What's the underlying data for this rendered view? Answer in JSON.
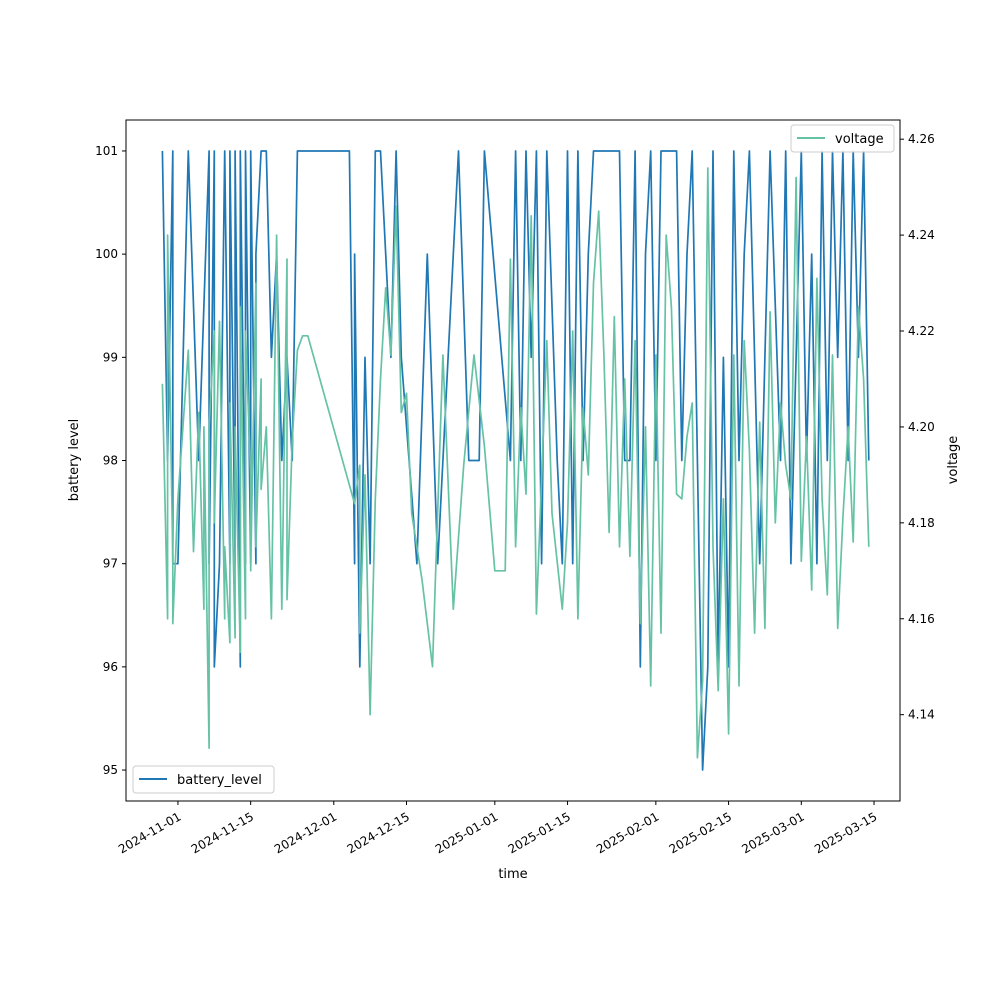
{
  "chart_data": {
    "type": "line",
    "title": "",
    "xlabel": "time",
    "ylabel_left": "battery level",
    "ylabel_right": "voltage",
    "x_ticks": [
      "2024-11-01",
      "2024-11-15",
      "2024-12-01",
      "2024-12-15",
      "2025-01-01",
      "2025-01-15",
      "2025-02-01",
      "2025-02-15",
      "2025-03-01",
      "2025-03-15"
    ],
    "y_left_ticks": [
      95,
      96,
      97,
      98,
      99,
      100,
      101
    ],
    "y_right_ticks": [
      4.14,
      4.16,
      4.18,
      4.2,
      4.22,
      4.24,
      4.26
    ],
    "xlim": [
      "2024-10-22",
      "2025-03-20"
    ],
    "ylim_left": [
      94.7,
      101.3
    ],
    "ylim_right": [
      4.122,
      4.264
    ],
    "grid": false,
    "legend_left": {
      "position": "bottom-left",
      "label": "battery_level"
    },
    "legend_right": {
      "position": "top-right",
      "label": "voltage"
    },
    "colors": {
      "battery_level": "#1f77b4",
      "voltage": "#66c2a5"
    },
    "series": [
      {
        "name": "battery_level",
        "axis": "left",
        "x": [
          "2024-10-29",
          "2024-10-30",
          "2024-10-31",
          "2024-10-31",
          "2024-11-01",
          "2024-11-03",
          "2024-11-05",
          "2024-11-07",
          "2024-11-07",
          "2024-11-08",
          "2024-11-08",
          "2024-11-09",
          "2024-11-10",
          "2024-11-11",
          "2024-11-11",
          "2024-11-12",
          "2024-11-12",
          "2024-11-13",
          "2024-11-13",
          "2024-11-14",
          "2024-11-14",
          "2024-11-15",
          "2024-11-15",
          "2024-11-16",
          "2024-11-16",
          "2024-11-17",
          "2024-11-18",
          "2024-11-19",
          "2024-11-20",
          "2024-11-21",
          "2024-11-22",
          "2024-11-23",
          "2024-11-24",
          "2024-11-25",
          "2024-11-27",
          "2024-12-04",
          "2024-12-05",
          "2024-12-05",
          "2024-12-06",
          "2024-12-07",
          "2024-12-08",
          "2024-12-09",
          "2024-12-10",
          "2024-12-11",
          "2024-12-12",
          "2024-12-13",
          "2024-12-14",
          "2024-12-17",
          "2024-12-19",
          "2024-12-21",
          "2024-12-23",
          "2024-12-25",
          "2024-12-27",
          "2024-12-29",
          "2024-12-30",
          "2025-01-04",
          "2025-01-05",
          "2025-01-06",
          "2025-01-07",
          "2025-01-08",
          "2025-01-09",
          "2025-01-10",
          "2025-01-11",
          "2025-01-13",
          "2025-01-14",
          "2025-01-15",
          "2025-01-16",
          "2025-01-17",
          "2025-01-18",
          "2025-01-19",
          "2025-01-20",
          "2025-01-22",
          "2025-01-25",
          "2025-01-26",
          "2025-01-27",
          "2025-01-28",
          "2025-01-29",
          "2025-01-30",
          "2025-01-31",
          "2025-02-01",
          "2025-02-02",
          "2025-02-03",
          "2025-02-05",
          "2025-02-06",
          "2025-02-07",
          "2025-02-08",
          "2025-02-10",
          "2025-02-11",
          "2025-02-12",
          "2025-02-13",
          "2025-02-14",
          "2025-02-15",
          "2025-02-16",
          "2025-02-17",
          "2025-02-18",
          "2025-02-19",
          "2025-02-20",
          "2025-02-21",
          "2025-02-23",
          "2025-02-25",
          "2025-02-26",
          "2025-02-27",
          "2025-02-28",
          "2025-03-01",
          "2025-03-02",
          "2025-03-03",
          "2025-03-04",
          "2025-03-05",
          "2025-03-06",
          "2025-03-07",
          "2025-03-08",
          "2025-03-09",
          "2025-03-10",
          "2025-03-11",
          "2025-03-12",
          "2025-03-13",
          "2025-03-14"
        ],
        "values": [
          101,
          98,
          101,
          97,
          97,
          101,
          98,
          101,
          97,
          101,
          96,
          97,
          101,
          97,
          101,
          97,
          101,
          96,
          101,
          97,
          101,
          97,
          101,
          97,
          100,
          101,
          101,
          99,
          100,
          98,
          99,
          98,
          101,
          101,
          101,
          101,
          97,
          100,
          96,
          99,
          97,
          101,
          101,
          100,
          99,
          101,
          99,
          97,
          100,
          97,
          99,
          101,
          98,
          98,
          101,
          98,
          101,
          98,
          101,
          99,
          101,
          97,
          101,
          98,
          97,
          101,
          97,
          101,
          98,
          100,
          101,
          101,
          101,
          98,
          98,
          101,
          96,
          100,
          101,
          98,
          101,
          101,
          101,
          98,
          100,
          101,
          95,
          96,
          101,
          96,
          99,
          96,
          101,
          98,
          100,
          101,
          99,
          97,
          101,
          98,
          101,
          97,
          99,
          101,
          98,
          100,
          97,
          101,
          98,
          101,
          99,
          101,
          98,
          101,
          99,
          101,
          98
        ]
      },
      {
        "name": "voltage",
        "axis": "right",
        "x": [
          "2024-10-29",
          "2024-10-30",
          "2024-10-30",
          "2024-10-31",
          "2024-10-31",
          "2024-11-01",
          "2024-11-03",
          "2024-11-04",
          "2024-11-05",
          "2024-11-06",
          "2024-11-06",
          "2024-11-07",
          "2024-11-07",
          "2024-11-08",
          "2024-11-08",
          "2024-11-09",
          "2024-11-10",
          "2024-11-10",
          "2024-11-11",
          "2024-11-11",
          "2024-11-12",
          "2024-11-12",
          "2024-11-13",
          "2024-11-13",
          "2024-11-14",
          "2024-11-14",
          "2024-11-15",
          "2024-11-15",
          "2024-11-16",
          "2024-11-16",
          "2024-11-17",
          "2024-11-17",
          "2024-11-18",
          "2024-11-19",
          "2024-11-20",
          "2024-11-21",
          "2024-11-22",
          "2024-11-22",
          "2024-11-23",
          "2024-11-24",
          "2024-11-25",
          "2024-11-26",
          "2024-12-05",
          "2024-12-06",
          "2024-12-06",
          "2024-12-07",
          "2024-12-08",
          "2024-12-09",
          "2024-12-10",
          "2024-12-11",
          "2024-12-12",
          "2024-12-13",
          "2024-12-14",
          "2024-12-15",
          "2024-12-16",
          "2024-12-18",
          "2024-12-20",
          "2024-12-22",
          "2024-12-24",
          "2024-12-26",
          "2024-12-28",
          "2024-12-30",
          "2025-01-01",
          "2025-01-03",
          "2025-01-04",
          "2025-01-05",
          "2025-01-06",
          "2025-01-07",
          "2025-01-08",
          "2025-01-09",
          "2025-01-10",
          "2025-01-11",
          "2025-01-12",
          "2025-01-14",
          "2025-01-15",
          "2025-01-16",
          "2025-01-17",
          "2025-01-18",
          "2025-01-19",
          "2025-01-20",
          "2025-01-21",
          "2025-01-22",
          "2025-01-23",
          "2025-01-24",
          "2025-01-25",
          "2025-01-26",
          "2025-01-27",
          "2025-01-28",
          "2025-01-29",
          "2025-01-30",
          "2025-01-31",
          "2025-02-01",
          "2025-02-02",
          "2025-02-03",
          "2025-02-04",
          "2025-02-05",
          "2025-02-06",
          "2025-02-07",
          "2025-02-08",
          "2025-02-09",
          "2025-02-10",
          "2025-02-11",
          "2025-02-12",
          "2025-02-13",
          "2025-02-14",
          "2025-02-15",
          "2025-02-16",
          "2025-02-17",
          "2025-02-18",
          "2025-02-19",
          "2025-02-20",
          "2025-02-21",
          "2025-02-22",
          "2025-02-23",
          "2025-02-24",
          "2025-02-25",
          "2025-02-26",
          "2025-02-27",
          "2025-02-28",
          "2025-03-01",
          "2025-03-02",
          "2025-03-03",
          "2025-03-04",
          "2025-03-05",
          "2025-03-06",
          "2025-03-07",
          "2025-03-08",
          "2025-03-09",
          "2025-03-10",
          "2025-03-11",
          "2025-03-12",
          "2025-03-13",
          "2025-03-14"
        ],
        "values": [
          4.209,
          4.16,
          4.24,
          4.172,
          4.159,
          4.185,
          4.216,
          4.174,
          4.203,
          4.162,
          4.2,
          4.133,
          4.2,
          4.22,
          4.18,
          4.222,
          4.16,
          4.175,
          4.155,
          4.205,
          4.156,
          4.2,
          4.153,
          4.225,
          4.16,
          4.22,
          4.19,
          4.17,
          4.23,
          4.175,
          4.21,
          4.187,
          4.2,
          4.16,
          4.24,
          4.162,
          4.235,
          4.164,
          4.197,
          4.216,
          4.219,
          4.219,
          4.184,
          4.192,
          4.157,
          4.19,
          4.14,
          4.185,
          4.21,
          4.229,
          4.215,
          4.246,
          4.203,
          4.207,
          4.182,
          4.168,
          4.15,
          4.215,
          4.162,
          4.192,
          4.215,
          4.196,
          4.17,
          4.17,
          4.235,
          4.175,
          4.204,
          4.186,
          4.244,
          4.161,
          4.189,
          4.218,
          4.182,
          4.162,
          4.18,
          4.22,
          4.16,
          4.204,
          4.19,
          4.23,
          4.245,
          4.215,
          4.178,
          4.223,
          4.175,
          4.21,
          4.173,
          4.218,
          4.159,
          4.2,
          4.146,
          4.215,
          4.157,
          4.24,
          4.225,
          4.186,
          4.185,
          4.198,
          4.205,
          4.131,
          4.147,
          4.254,
          4.175,
          4.145,
          4.185,
          4.136,
          4.215,
          4.146,
          4.218,
          4.195,
          4.157,
          4.201,
          4.158,
          4.224,
          4.18,
          4.205,
          4.192,
          4.185,
          4.252,
          4.172,
          4.198,
          4.166,
          4.231,
          4.185,
          4.165,
          4.215,
          4.158,
          4.181,
          4.2,
          4.176,
          4.225,
          4.21,
          4.175
        ]
      }
    ]
  }
}
